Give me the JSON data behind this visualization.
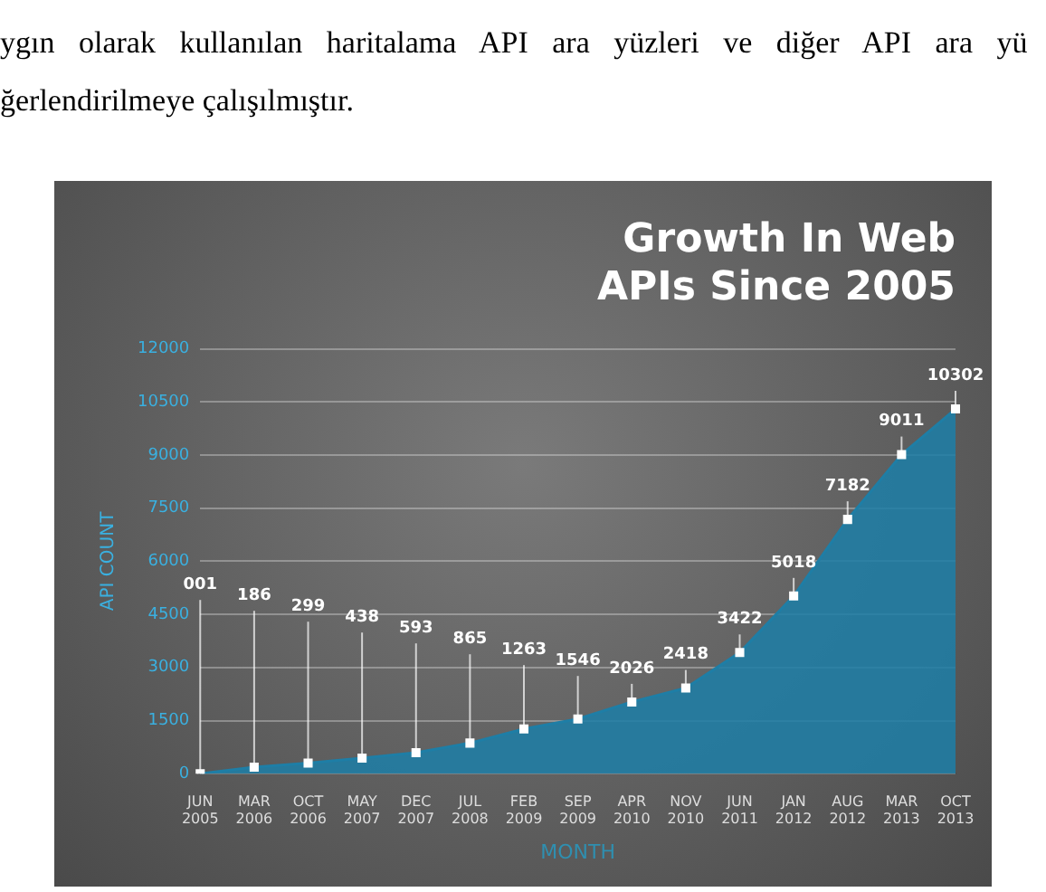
{
  "chart_data": {
    "type": "area",
    "title": [
      "Growth In Web",
      "APIs Since 2005"
    ],
    "xlabel": "MONTH",
    "ylabel": "API COUNT",
    "annotations": [
      "ygın olarak kullanılan haritalama API ara yüzleri ve diğer API ara yü",
      "ğerlendirilmeye çalışılmıştır."
    ],
    "categories": [
      "JUN 2005",
      "MAR 2006",
      "OCT 2006",
      "MAY 2007",
      "DEC 2007",
      "JUL 2008",
      "FEB 2009",
      "SEP 2009",
      "APR 2010",
      "NOV 2010",
      "JUN 2011",
      "JAN 2012",
      "AUG 2012",
      "MAR 2013",
      "OCT 2013"
    ],
    "series": [
      {
        "color": "#1e7ea6",
        "values": [
          1,
          186,
          299,
          438,
          593,
          865,
          1263,
          1546,
          2026,
          2418,
          3422,
          5018,
          7182,
          9011,
          10302
        ],
        "value_labels": [
          "001",
          "186",
          "299",
          "438",
          "593",
          "865",
          "1263",
          "1546",
          "2026",
          "2418",
          "3422",
          "5018",
          "7182",
          "9011",
          "10302"
        ]
      }
    ],
    "ylim": [
      0,
      12000
    ],
    "yticks": [
      0,
      1500,
      3000,
      4500,
      6000,
      7500,
      9000,
      10500,
      12000
    ],
    "grid": "y",
    "marker": "square",
    "legend": false
  }
}
